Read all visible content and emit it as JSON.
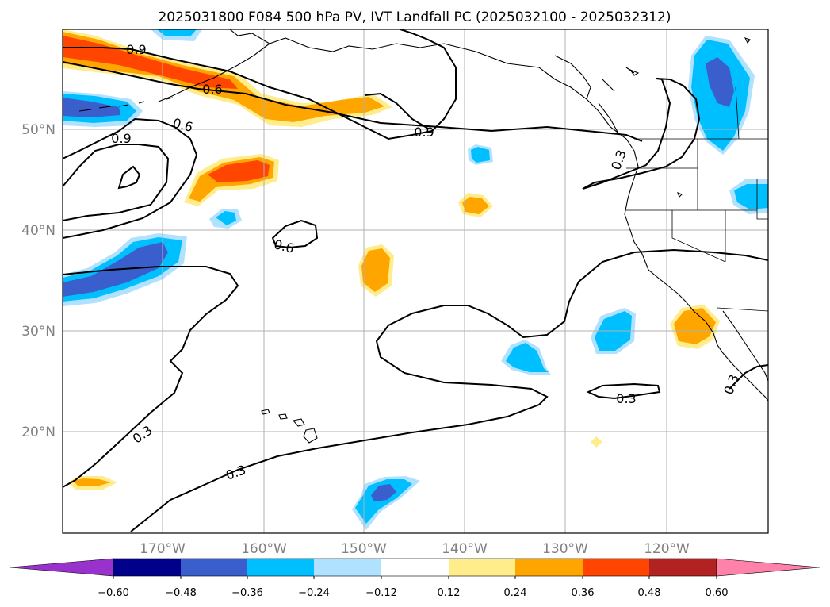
{
  "title": "2025031800 F084 500 hPa PV, IVT Landfall PC (2025032100 - 2025032312)",
  "latitude_labels": [
    "50°N",
    "40°N",
    "30°N",
    "20°N"
  ],
  "longitude_labels": [
    "170°W",
    "160°W",
    "150°W",
    "140°W",
    "130°W",
    "120°W"
  ],
  "contour_labels": {
    "c09_a": "0.9",
    "c06_a": "0.6",
    "c06_b": "0.6",
    "c09_b": "0.9",
    "c09_c": "0.9",
    "c06_c": "0.6",
    "c03_a": "0.3",
    "c03_b": "0.3",
    "c03_c": "0.3",
    "c03_d": "0.3",
    "c03_e": "0.3"
  },
  "colorbar": {
    "tick_labels": [
      "−0.60",
      "−0.48",
      "−0.36",
      "−0.24",
      "−0.12",
      "0.12",
      "0.24",
      "0.36",
      "0.48",
      "0.60"
    ],
    "colors": [
      "#9932cc",
      "#00008b",
      "#3a5fcd",
      "#00bfff",
      "#b0e2ff",
      "#ffffff",
      "#ffec8b",
      "#ffa500",
      "#ff4500",
      "#b22222",
      "#ff82ab"
    ]
  },
  "shading_colors": {
    "pos1": "#ffec8b",
    "pos2": "#ffa500",
    "pos3": "#ff4500",
    "neg1": "#b0e2ff",
    "neg2": "#00bfff",
    "neg3": "#3a5fcd"
  }
}
